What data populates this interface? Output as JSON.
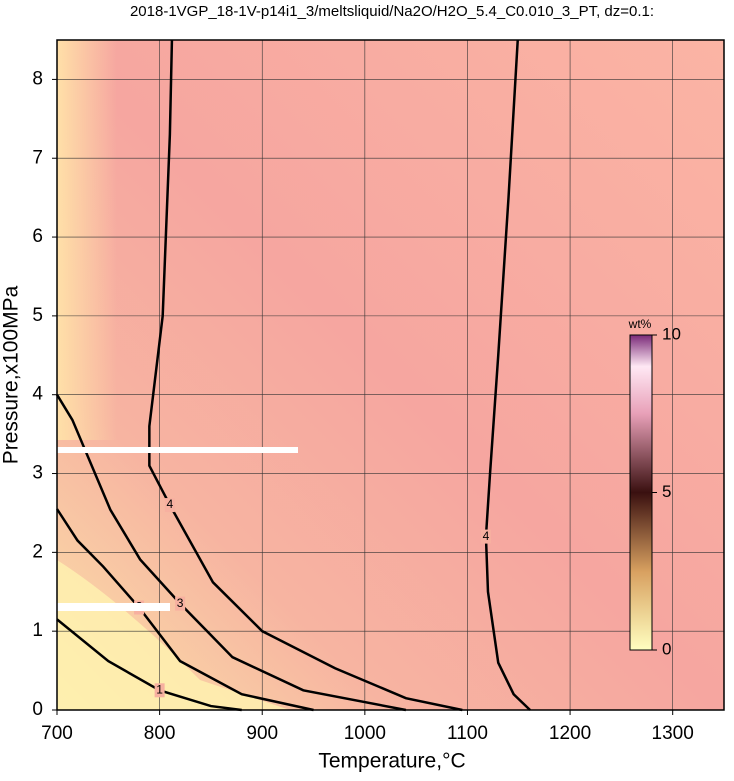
{
  "chart_data": {
    "type": "contour",
    "title": "2018-1VGP_18-1V-p14i1_3/meltsliquid/Na2O/H2O_5.4_C0.010_3_PT, dz=0.1:",
    "x_label": "Temperature,°C",
    "y_label": "Pressure,x100MPa",
    "xlim": [
      700,
      1350
    ],
    "ylim": [
      0,
      8.5
    ],
    "xticks": [
      700,
      800,
      900,
      1000,
      1100,
      1200,
      1300
    ],
    "yticks": [
      0,
      1,
      2,
      3,
      4,
      5,
      6,
      7,
      8
    ],
    "grid": true,
    "line_color": "#000000",
    "colorbar": {
      "label": "wt%",
      "lim": [
        0,
        10
      ],
      "ticks": [
        0,
        5,
        10
      ]
    },
    "contours": [
      {
        "level": 1,
        "x": [
          700,
          750,
          800,
          850,
          880
        ],
        "y": [
          1.15,
          0.62,
          0.25,
          0.05,
          0
        ]
      },
      {
        "level": 2,
        "x": [
          700,
          720,
          745,
          780,
          820,
          880,
          950
        ],
        "y": [
          2.55,
          2.15,
          1.82,
          1.3,
          0.62,
          0.2,
          0
        ]
      },
      {
        "level": 3,
        "x": [
          700,
          715,
          752,
          781,
          820,
          871,
          940,
          1040
        ],
        "y": [
          4.0,
          3.68,
          2.54,
          1.91,
          1.35,
          0.67,
          0.25,
          0
        ]
      },
      {
        "level": 4,
        "x": [
          812,
          810,
          803,
          790,
          790,
          810,
          852,
          900,
          971,
          1040,
          1095
        ],
        "y": [
          8.5,
          7.3,
          5.0,
          3.6,
          3.1,
          2.6,
          1.62,
          1.0,
          0.53,
          0.15,
          0
        ]
      },
      {
        "level": 4,
        "x": [
          1149,
          1140,
          1130,
          1122,
          1118,
          1120,
          1130,
          1145,
          1161
        ],
        "y": [
          8.5,
          6.5,
          4.5,
          3.0,
          2.2,
          1.5,
          0.6,
          0.2,
          0
        ]
      }
    ]
  }
}
